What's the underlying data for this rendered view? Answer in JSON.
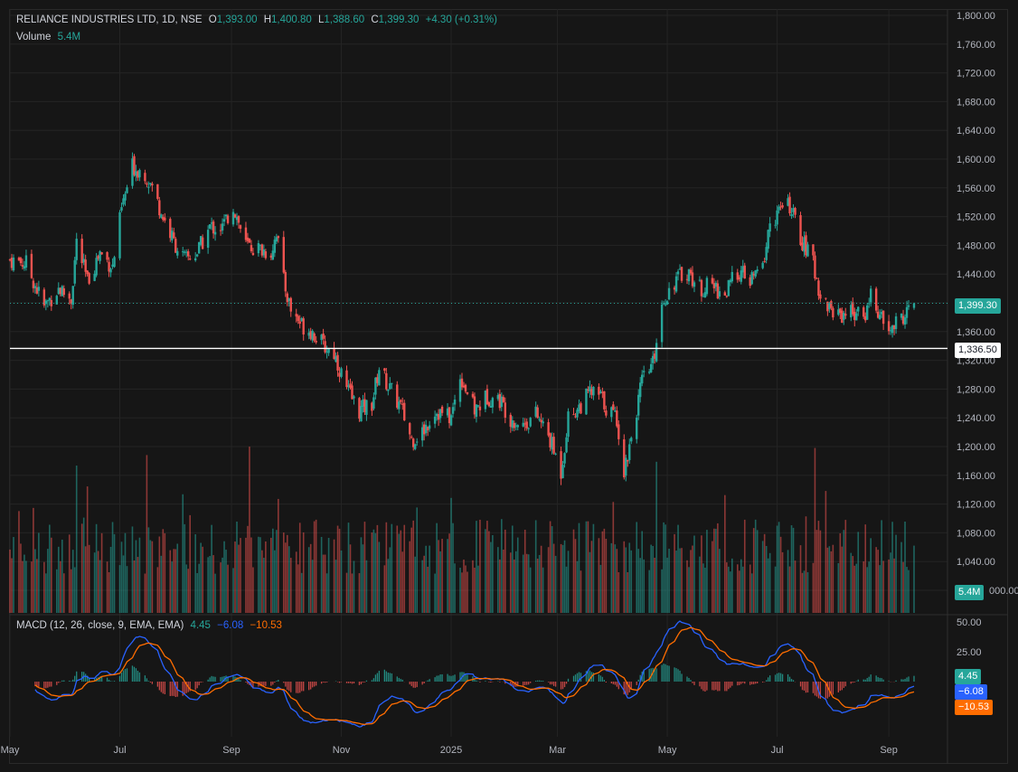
{
  "header": {
    "symbol": "RELIANCE INDUSTRIES LTD, 1D, NSE",
    "open_label": "O",
    "open": "1,393.00",
    "high_label": "H",
    "high": "1,400.80",
    "low_label": "L",
    "low": "1,388.60",
    "close_label": "C",
    "close": "1,399.30",
    "change": "+4.30 (+0.31%)",
    "volume_label": "Volume",
    "volume": "5.4M"
  },
  "macd_legend": {
    "title": "MACD (12, 26, close, 9, EMA, EMA)",
    "hist": "4.45",
    "macd": "−6.08",
    "signal": "−10.53"
  },
  "labels": {
    "last_price": "1,399.30",
    "hline_price": "1,336.50",
    "last_volume": "5.4M",
    "macd_hist": "4.45",
    "macd_line": "−6.08",
    "signal_line": "−10.53"
  },
  "colors": {
    "up": "#26a69a",
    "down": "#ef5350",
    "macd": "#2962ff",
    "signal": "#ff6d00",
    "background": "#161616",
    "grid": "#242424",
    "hline": "#ffffff"
  },
  "chart_data": [
    {
      "type": "candlestick",
      "title": "RELIANCE INDUSTRIES LTD, 1D, NSE",
      "y_ticks": [
        "1,800.00",
        "1,760.00",
        "1,720.00",
        "1,680.00",
        "1,640.00",
        "1,600.00",
        "1,560.00",
        "1,520.00",
        "1,480.00",
        "1,440.00",
        "1,400.00",
        "1,360.00",
        "1,320.00",
        "1,280.00",
        "1,240.00",
        "1,200.00",
        "1,160.00",
        "1,120.00",
        "1,080.00",
        "1,040.00",
        "1,000.00"
      ],
      "ylim": [
        1000,
        1800
      ],
      "x_ticks": [
        "May",
        "Jul",
        "Sep",
        "Nov",
        "2025",
        "Mar",
        "May",
        "Jul",
        "Sep"
      ],
      "horizontal_line": 1336.5,
      "last_close": 1399.3,
      "close_path": [
        [
          "2024-05-01",
          1460
        ],
        [
          "2024-05-10",
          1455
        ],
        [
          "2024-05-20",
          1395
        ],
        [
          "2024-05-28",
          1420
        ],
        [
          "2024-06-04",
          1405
        ],
        [
          "2024-06-07",
          1485
        ],
        [
          "2024-06-13",
          1430
        ],
        [
          "2024-06-20",
          1470
        ],
        [
          "2024-06-27",
          1450
        ],
        [
          "2024-07-02",
          1530
        ],
        [
          "2024-07-08",
          1590
        ],
        [
          "2024-07-15",
          1580
        ],
        [
          "2024-07-19",
          1560
        ],
        [
          "2024-07-25",
          1520
        ],
        [
          "2024-07-31",
          1485
        ],
        [
          "2024-08-06",
          1460
        ],
        [
          "2024-08-13",
          1470
        ],
        [
          "2024-08-20",
          1505
        ],
        [
          "2024-08-27",
          1505
        ],
        [
          "2024-09-02",
          1535
        ],
        [
          "2024-09-09",
          1480
        ],
        [
          "2024-09-16",
          1475
        ],
        [
          "2024-09-23",
          1470
        ],
        [
          "2024-09-26",
          1500
        ],
        [
          "2024-09-30",
          1430
        ],
        [
          "2024-10-04",
          1390
        ],
        [
          "2024-10-10",
          1370
        ],
        [
          "2024-10-16",
          1360
        ],
        [
          "2024-10-22",
          1340
        ],
        [
          "2024-10-28",
          1330
        ],
        [
          "2024-11-04",
          1280
        ],
        [
          "2024-11-11",
          1250
        ],
        [
          "2024-11-18",
          1260
        ],
        [
          "2024-11-22",
          1310
        ],
        [
          "2024-11-28",
          1280
        ],
        [
          "2024-12-04",
          1255
        ],
        [
          "2024-12-10",
          1210
        ],
        [
          "2024-12-16",
          1220
        ],
        [
          "2024-12-23",
          1250
        ],
        [
          "2025-01-01",
          1240
        ],
        [
          "2025-01-06",
          1300
        ],
        [
          "2025-01-14",
          1250
        ],
        [
          "2025-01-21",
          1270
        ],
        [
          "2025-01-28",
          1265
        ],
        [
          "2025-02-03",
          1240
        ],
        [
          "2025-02-10",
          1230
        ],
        [
          "2025-02-17",
          1245
        ],
        [
          "2025-02-24",
          1215
        ],
        [
          "2025-03-03",
          1165
        ],
        [
          "2025-03-07",
          1240
        ],
        [
          "2025-03-13",
          1255
        ],
        [
          "2025-03-19",
          1275
        ],
        [
          "2025-03-25",
          1270
        ],
        [
          "2025-03-28",
          1255
        ],
        [
          "2025-04-03",
          1240
        ],
        [
          "2025-04-07",
          1165
        ],
        [
          "2025-04-11",
          1215
        ],
        [
          "2025-04-17",
          1290
        ],
        [
          "2025-04-23",
          1315
        ],
        [
          "2025-04-28",
          1400
        ],
        [
          "2025-05-05",
          1430
        ],
        [
          "2025-05-12",
          1445
        ],
        [
          "2025-05-19",
          1420
        ],
        [
          "2025-05-26",
          1425
        ],
        [
          "2025-06-02",
          1410
        ],
        [
          "2025-06-09",
          1445
        ],
        [
          "2025-06-16",
          1430
        ],
        [
          "2025-06-23",
          1450
        ],
        [
          "2025-06-27",
          1510
        ],
        [
          "2025-07-03",
          1530
        ],
        [
          "2025-07-08",
          1535
        ],
        [
          "2025-07-14",
          1490
        ],
        [
          "2025-07-21",
          1455
        ],
        [
          "2025-07-25",
          1410
        ],
        [
          "2025-07-31",
          1390
        ],
        [
          "2025-08-06",
          1385
        ],
        [
          "2025-08-12",
          1390
        ],
        [
          "2025-08-18",
          1375
        ],
        [
          "2025-08-22",
          1415
        ],
        [
          "2025-08-27",
          1380
        ],
        [
          "2025-09-01",
          1360
        ],
        [
          "2025-09-05",
          1370
        ],
        [
          "2025-09-10",
          1385
        ],
        [
          "2025-09-15",
          1399.3
        ]
      ]
    },
    {
      "type": "bar",
      "title": "Volume",
      "last_value": "5.4M"
    },
    {
      "type": "line",
      "title": "MACD (12, 26, close, 9, EMA, EMA)",
      "y_ticks": [
        "50.00",
        "25.00"
      ],
      "series": [
        {
          "name": "histogram",
          "last": 4.45
        },
        {
          "name": "MACD",
          "last": -6.08
        },
        {
          "name": "signal",
          "last": -10.53
        }
      ]
    }
  ]
}
